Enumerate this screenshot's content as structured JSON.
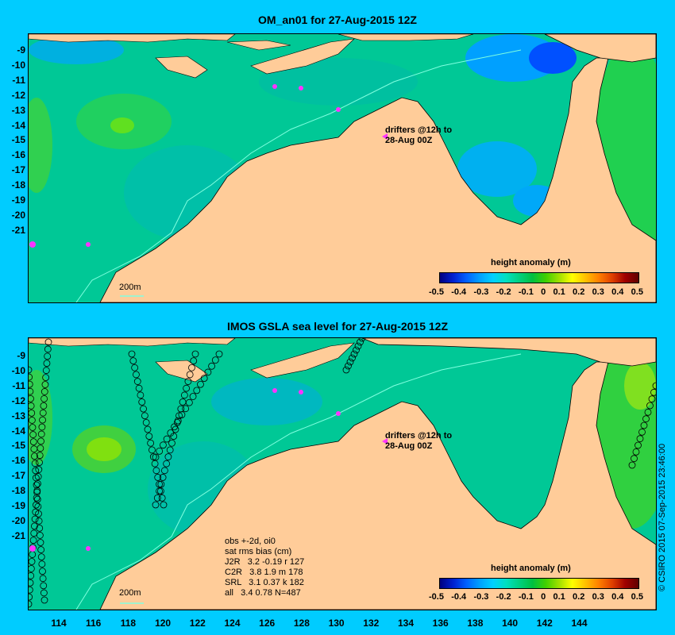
{
  "top": {
    "title": "OM_an01 for 27-Aug-2015 12Z",
    "drifters_line1": "drifters @12h to",
    "drifters_line2": "28-Aug 00Z",
    "isobath_label": "200m",
    "legend_title": "height anomaly (m)"
  },
  "bottom": {
    "title": "IMOS GSLA sea level  for 27-Aug-2015 12Z",
    "drifters_line1": "drifters @12h to",
    "drifters_line2": "28-Aug 00Z",
    "isobath_label": "200m",
    "legend_title": "height anomaly (m)",
    "stats": [
      "obs +-2d, oi0",
      "sat rms bias (cm)",
      "J2R   3.2 -0.19 r 127",
      "C2R   3.8 1.9 m 178",
      "SRL   3.1 0.37 k 182",
      "all   3.4 0.78 N=487"
    ]
  },
  "colorbar_ticks": [
    "-0.5",
    "-0.4",
    "-0.3",
    "-0.2",
    "-0.1",
    "0",
    "0.1",
    "0.2",
    "0.3",
    "0.4",
    "0.5"
  ],
  "y_ticks_top": [
    "-9",
    "-10",
    "-11",
    "-12",
    "-13",
    "-14",
    "-15",
    "-16",
    "-17",
    "-18",
    "-19",
    "-20",
    "-21"
  ],
  "y_ticks_bottom": [
    "-9",
    "-10",
    "-11",
    "-12",
    "-13",
    "-14",
    "-15",
    "-16",
    "-17",
    "-18",
    "-19",
    "-20",
    "-21"
  ],
  "x_ticks": [
    "114",
    "116",
    "118",
    "120",
    "122",
    "124",
    "126",
    "128",
    "130",
    "132",
    "134",
    "136",
    "138",
    "140",
    "142",
    "144"
  ],
  "credit": "© CSIRO 2015  07-Sep-2015 23:46:00",
  "colors": {
    "background": "#00ccff",
    "land": "#ffcc99",
    "ocean": "#00c8a0",
    "drifter": "#ff33ff"
  }
}
